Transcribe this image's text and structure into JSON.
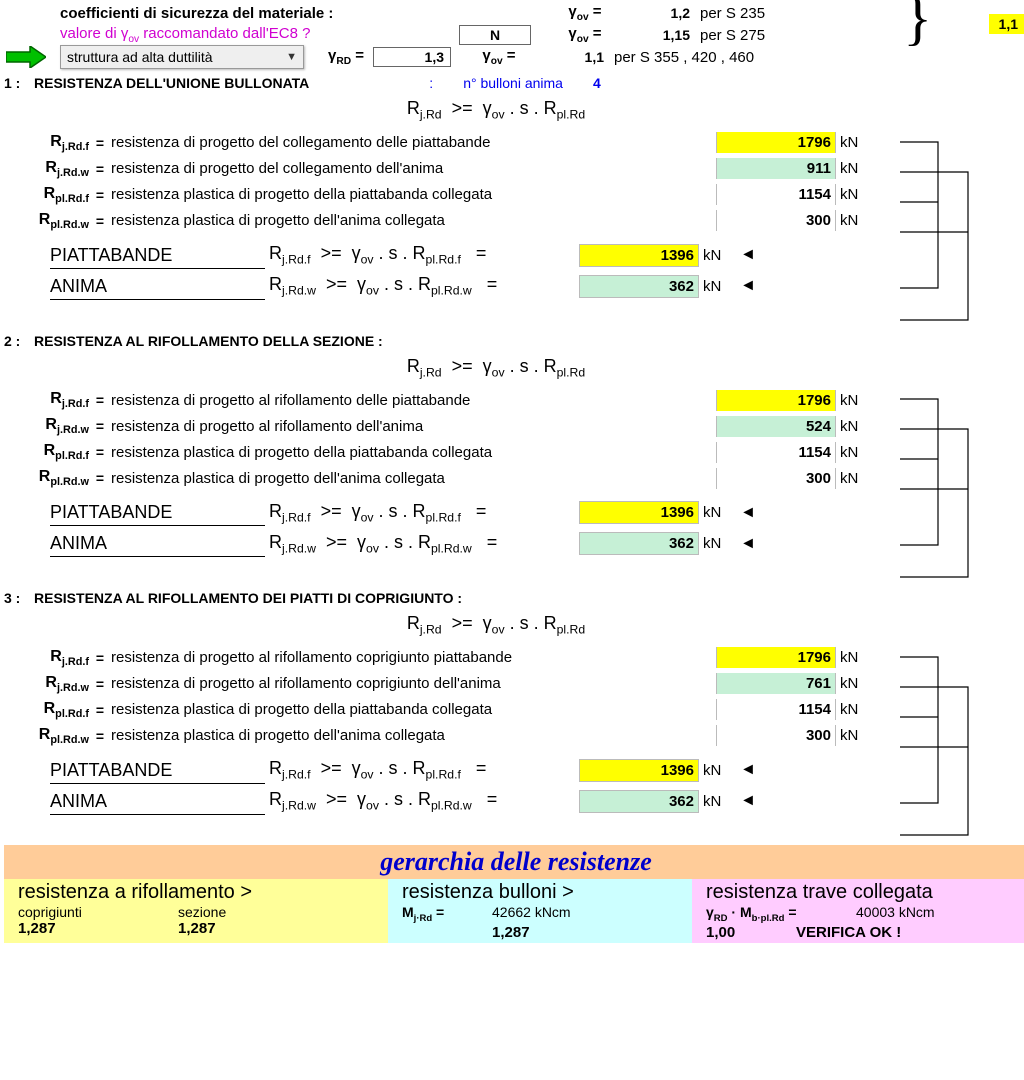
{
  "colors": {
    "yellow": "#ffff00",
    "green": "#c6f0d6",
    "orange": "#ffcc99",
    "lightyellow": "#ffff99",
    "lightcyan": "#ccffff",
    "lightpink": "#ffccff"
  },
  "header": {
    "coef_label": "coefficienti di sicurezza del materiale :",
    "ec8_question": "valore di γov raccomandato dall'EC8 ?",
    "n_label": "N",
    "gamma_rd_label": "γRD =",
    "gamma_rd_value": "1,3",
    "dropdown_value": "struttura ad alta duttilità",
    "right_value": "1,1",
    "gamma_rows": [
      {
        "sym": "γov =",
        "val": "1,2",
        "desc": "per S 235"
      },
      {
        "sym": "γov =",
        "val": "1,15",
        "desc": "per S 275"
      },
      {
        "sym": "γov =",
        "val": "1,1",
        "desc": "per S 355 , 420 , 460"
      }
    ]
  },
  "section_common": {
    "formula": "Rj.Rd  >=  γov . s . Rpl.Rd",
    "unit": "kN",
    "group_p_label": "PIATTABANDE",
    "group_a_label": "ANIMA",
    "group_p_formula": "Rj.Rd.f  >=  γov . s . Rpl.Rd.f   =",
    "group_a_formula": "Rj.Rd.w  >=  γov . s . Rpl.Rd.w   ="
  },
  "sections": [
    {
      "num": "1 :",
      "title": "RESISTENZA DELL'UNIONE BULLONATA",
      "extra_label": "n° bulloni anima",
      "extra_val": "4",
      "rows": [
        {
          "var": "Rj.Rd.f",
          "desc": "resistenza di progetto del collegamento delle piattabande",
          "val": "1796",
          "hl": "hl-yellow"
        },
        {
          "var": "Rj.Rd.w",
          "desc": "resistenza di progetto del collegamento dell'anima",
          "val": "911",
          "hl": "hl-green"
        },
        {
          "var": "Rpl.Rd.f",
          "desc": "resistenza plastica di progetto della piattabanda collegata",
          "val": "1154",
          "hl": ""
        },
        {
          "var": "Rpl.Rd.w",
          "desc": "resistenza plastica di progetto dell'anima collegata",
          "val": "300",
          "hl": ""
        }
      ],
      "group_p_val": "1396",
      "group_p_hl": "hl-yellow",
      "group_a_val": "362",
      "group_a_hl": "hl-green"
    },
    {
      "num": "2 :",
      "title": "RESISTENZA AL RIFOLLAMENTO DELLA SEZIONE :",
      "rows": [
        {
          "var": "Rj.Rd.f",
          "desc": "resistenza di progetto al rifollamento delle piattabande",
          "val": "1796",
          "hl": "hl-yellow"
        },
        {
          "var": "Rj.Rd.w",
          "desc": "resistenza di progetto al rifollamento dell'anima",
          "val": "524",
          "hl": "hl-green"
        },
        {
          "var": "Rpl.Rd.f",
          "desc": "resistenza plastica di progetto della piattabanda collegata",
          "val": "1154",
          "hl": ""
        },
        {
          "var": "Rpl.Rd.w",
          "desc": "resistenza plastica di progetto dell'anima collegata",
          "val": "300",
          "hl": ""
        }
      ],
      "group_p_val": "1396",
      "group_p_hl": "hl-yellow",
      "group_a_val": "362",
      "group_a_hl": "hl-green"
    },
    {
      "num": "3 :",
      "title": "RESISTENZA AL RIFOLLAMENTO DEI PIATTI DI COPRIGIUNTO :",
      "rows": [
        {
          "var": "Rj.Rd.f",
          "desc": "resistenza di progetto al rifollamento coprigiunto piattabande",
          "val": "1796",
          "hl": "hl-yellow"
        },
        {
          "var": "Rj.Rd.w",
          "desc": "resistenza di progetto al rifollamento coprigiunto dell'anima",
          "val": "761",
          "hl": "hl-green"
        },
        {
          "var": "Rpl.Rd.f",
          "desc": "resistenza plastica di progetto della piattabanda collegata",
          "val": "1154",
          "hl": ""
        },
        {
          "var": "Rpl.Rd.w",
          "desc": "resistenza plastica di progetto dell'anima collegata",
          "val": "300",
          "hl": ""
        }
      ],
      "group_p_val": "1396",
      "group_p_hl": "hl-yellow",
      "group_a_val": "362",
      "group_a_hl": "hl-green"
    }
  ],
  "footer": {
    "title": "gerarchia delle resistenze",
    "col1": {
      "title": "resistenza a rifollamento   >",
      "l1": "coprigiunti",
      "l2": "sezione",
      "v1": "1,287",
      "v2": "1,287"
    },
    "col2": {
      "title": "resistenza bulloni    >",
      "l1": "Mj·Rd =",
      "l2": "42662  kNcm",
      "v1": "1,287"
    },
    "col3": {
      "title": "resistenza trave collegata",
      "l1": "γRD · Mb·pl.Rd =",
      "l2": "40003  kNcm",
      "v1": "1,00",
      "ok": "VERIFICA OK !"
    }
  }
}
